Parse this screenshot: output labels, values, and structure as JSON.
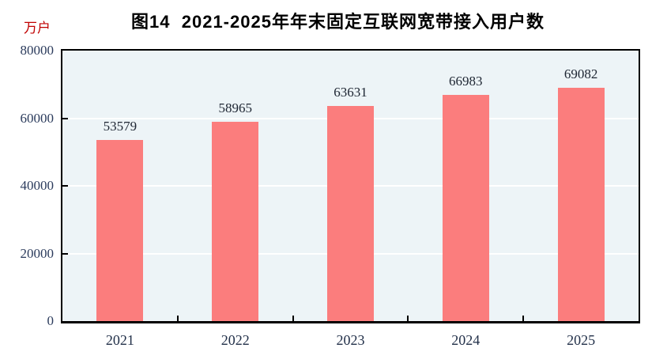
{
  "chart_data": {
    "type": "bar",
    "title": "图14  2021-2025年年末固定互联网宽带接入用户数",
    "unit_label": "万户",
    "categories": [
      "2021",
      "2022",
      "2023",
      "2024",
      "2025"
    ],
    "values": [
      53579,
      58965,
      63631,
      66983,
      69082
    ],
    "value_labels": [
      "53579",
      "58965",
      "63631",
      "66983",
      "69082"
    ],
    "ylim": [
      0,
      80000
    ],
    "yticks": [
      0,
      20000,
      40000,
      60000,
      80000
    ],
    "grid": "horizontal-white-lines",
    "legend": "none",
    "xlabel": "",
    "ylabel": "万户"
  },
  "colors": {
    "bar": "#fb7d7d",
    "plot_background": "#edf4f7",
    "axis": "#000000",
    "gridline": "#ffffff",
    "tick_label": "#2b3b5c",
    "value_label": "#1d2532",
    "title": "#000000",
    "unit_label": "#c00000",
    "page_background": "#ffffff"
  }
}
